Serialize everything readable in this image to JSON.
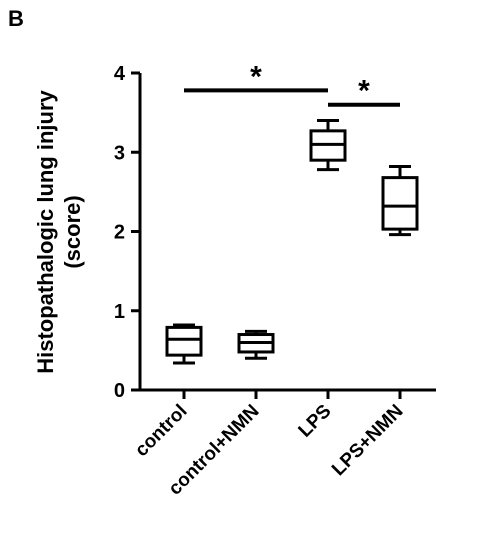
{
  "panel_label": "B",
  "chart_data": {
    "type": "box",
    "ylabel_line1": "Histopathalogic lung injury",
    "ylabel_line2": "(score)",
    "ylim": [
      0,
      4
    ],
    "yticks": [
      0,
      1,
      2,
      3,
      4
    ],
    "categories": [
      "control",
      "control+NMN",
      "LPS",
      "LPS+NMN"
    ],
    "boxes": [
      {
        "category": "control",
        "min": 0.34,
        "q1": 0.44,
        "median": 0.64,
        "q3": 0.79,
        "max": 0.82
      },
      {
        "category": "control+NMN",
        "min": 0.4,
        "q1": 0.48,
        "median": 0.6,
        "q3": 0.7,
        "max": 0.74
      },
      {
        "category": "LPS",
        "min": 2.78,
        "q1": 2.9,
        "median": 3.1,
        "q3": 3.27,
        "max": 3.4
      },
      {
        "category": "LPS+NMN",
        "min": 1.96,
        "q1": 2.03,
        "median": 2.32,
        "q3": 2.68,
        "max": 2.82
      }
    ],
    "significance": [
      {
        "from": "control",
        "to": "LPS",
        "label": "*",
        "y": 3.78
      },
      {
        "from": "LPS",
        "to": "LPS+NMN",
        "label": "*",
        "y": 3.6
      }
    ]
  }
}
